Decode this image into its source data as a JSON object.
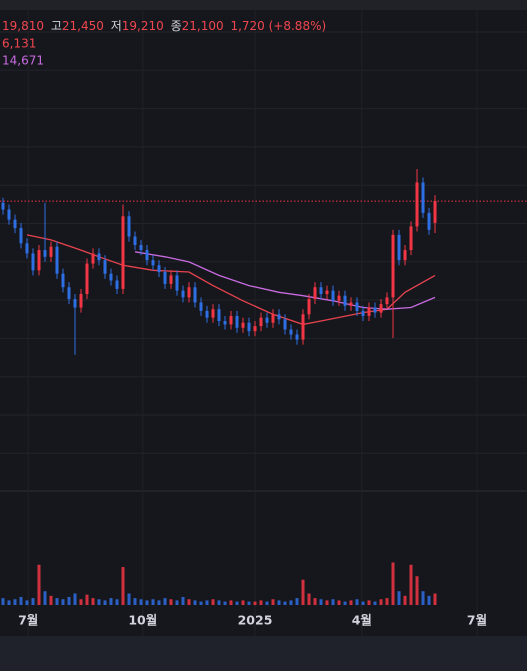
{
  "header": {
    "open": "19,810",
    "high_label": "고",
    "high": "21,450",
    "low_label": "저",
    "low": "19,210",
    "close_label": "종",
    "close": "21,100",
    "change": "1,720 (+8.88%)",
    "ma_short": "6,131",
    "ma_long": "14,671"
  },
  "chart_data": {
    "type": "candlestick",
    "up_color": "#f23645",
    "down_color": "#2f6fe4",
    "xlim": [
      -0.5,
      87.33
    ],
    "ylim": [
      4000,
      33000
    ],
    "xticks": [
      {
        "value": 4.2,
        "label": "7월"
      },
      {
        "value": 23.3,
        "label": "10월"
      },
      {
        "value": 42,
        "label": "2025"
      },
      {
        "value": 59.8,
        "label": "4월"
      },
      {
        "value": 79,
        "label": "7월"
      }
    ],
    "open": [
      21000,
      20600,
      20000,
      19500,
      18600,
      18000,
      17000,
      18200,
      17800,
      18400,
      16800,
      16000,
      15300,
      14800,
      15600,
      17400,
      18000,
      17600,
      16800,
      16400,
      15900,
      20200,
      19000,
      18500,
      18200,
      17600,
      17300,
      16900,
      16200,
      16700,
      15800,
      15400,
      16000,
      15100,
      14600,
      14200,
      14700,
      14000,
      13800,
      14300,
      13600,
      13900,
      13400,
      13700,
      14200,
      13900,
      14400,
      14100,
      13500,
      13200,
      12900,
      14400,
      15300,
      16000,
      15600,
      15800,
      15200,
      15500,
      14900,
      15100,
      14600,
      14300,
      14800,
      14500,
      15000,
      15400,
      19100,
      17600,
      18200,
      19600,
      22200,
      20400,
      19810
    ],
    "high": [
      21300,
      20900,
      20300,
      19800,
      18900,
      18300,
      18500,
      21000,
      18700,
      18700,
      17100,
      16300,
      15600,
      15900,
      17700,
      18300,
      18300,
      17900,
      17100,
      16700,
      20900,
      20500,
      19300,
      18800,
      18500,
      17900,
      17600,
      17200,
      17000,
      17000,
      16100,
      16300,
      16300,
      15400,
      14900,
      15000,
      15000,
      14300,
      14600,
      14600,
      14200,
      14200,
      14000,
      14500,
      14500,
      14700,
      14700,
      14400,
      13800,
      13500,
      14700,
      15600,
      16300,
      16300,
      16100,
      16100,
      15800,
      15800,
      15400,
      15400,
      14900,
      15100,
      15100,
      15300,
      15700,
      19400,
      19400,
      18500,
      19900,
      23000,
      22500,
      20700,
      21450
    ],
    "low": [
      20300,
      19700,
      19200,
      18300,
      17700,
      16700,
      16700,
      17500,
      17500,
      16500,
      15700,
      15000,
      12000,
      14500,
      15300,
      17100,
      17300,
      16500,
      16100,
      15600,
      15600,
      18700,
      18200,
      17900,
      17300,
      17000,
      16600,
      15900,
      15900,
      15500,
      15100,
      15100,
      14800,
      14300,
      13900,
      13900,
      13700,
      13500,
      13500,
      13300,
      13300,
      13100,
      13100,
      13400,
      13600,
      13600,
      13800,
      13200,
      12900,
      12600,
      12600,
      14100,
      15000,
      15300,
      15300,
      14900,
      14900,
      14600,
      14600,
      14300,
      14000,
      14000,
      14200,
      14200,
      14700,
      13000,
      17300,
      17300,
      17900,
      19300,
      20100,
      19100,
      19210
    ],
    "close": [
      20600,
      20000,
      19500,
      18600,
      18000,
      17000,
      18200,
      17800,
      18400,
      16800,
      16000,
      15300,
      14800,
      15600,
      17400,
      18000,
      17600,
      16800,
      16400,
      15900,
      20200,
      19000,
      18500,
      18200,
      17600,
      17300,
      16900,
      16200,
      16700,
      15800,
      15400,
      16000,
      15100,
      14600,
      14200,
      14700,
      14000,
      13800,
      14300,
      13600,
      13900,
      13400,
      13700,
      14200,
      13900,
      14400,
      14100,
      13500,
      13200,
      12900,
      14400,
      15300,
      16000,
      15600,
      15800,
      15200,
      15500,
      14900,
      15100,
      14600,
      14300,
      14800,
      14500,
      15000,
      15400,
      19100,
      17600,
      18200,
      19600,
      22200,
      20400,
      19400,
      21100
    ],
    "volume": {
      "ylim": [
        0,
        100
      ],
      "values": [
        6,
        4,
        5,
        7,
        4,
        6,
        35,
        12,
        8,
        6,
        5,
        7,
        10,
        5,
        9,
        6,
        5,
        4,
        6,
        5,
        33,
        10,
        6,
        5,
        4,
        5,
        4,
        6,
        5,
        4,
        7,
        5,
        4,
        3,
        4,
        5,
        4,
        3,
        4,
        3,
        4,
        3,
        3,
        4,
        3,
        5,
        4,
        3,
        4,
        6,
        22,
        10,
        6,
        5,
        4,
        5,
        4,
        3,
        4,
        5,
        3,
        4,
        3,
        5,
        6,
        37,
        12,
        8,
        35,
        25,
        12,
        8,
        10
      ]
    },
    "lines": [
      {
        "name": "ma-short",
        "color": "#e8434f",
        "x": [
          4,
          8,
          13,
          16,
          20,
          25,
          31,
          35,
          40,
          45,
          50,
          53,
          60,
          64,
          67,
          72
        ],
        "values": [
          19100,
          18800,
          18200,
          17800,
          17300,
          17000,
          16900,
          16100,
          15200,
          14400,
          13800,
          14000,
          14500,
          14700,
          15700,
          16700
        ]
      },
      {
        "name": "ma-long",
        "color": "#c86be0",
        "x": [
          22,
          27,
          31,
          36,
          41,
          46,
          50,
          55,
          60,
          64,
          68,
          72
        ],
        "values": [
          18100,
          17800,
          17500,
          16700,
          16100,
          15700,
          15500,
          15200,
          14800,
          14700,
          14800,
          15400
        ]
      }
    ]
  }
}
